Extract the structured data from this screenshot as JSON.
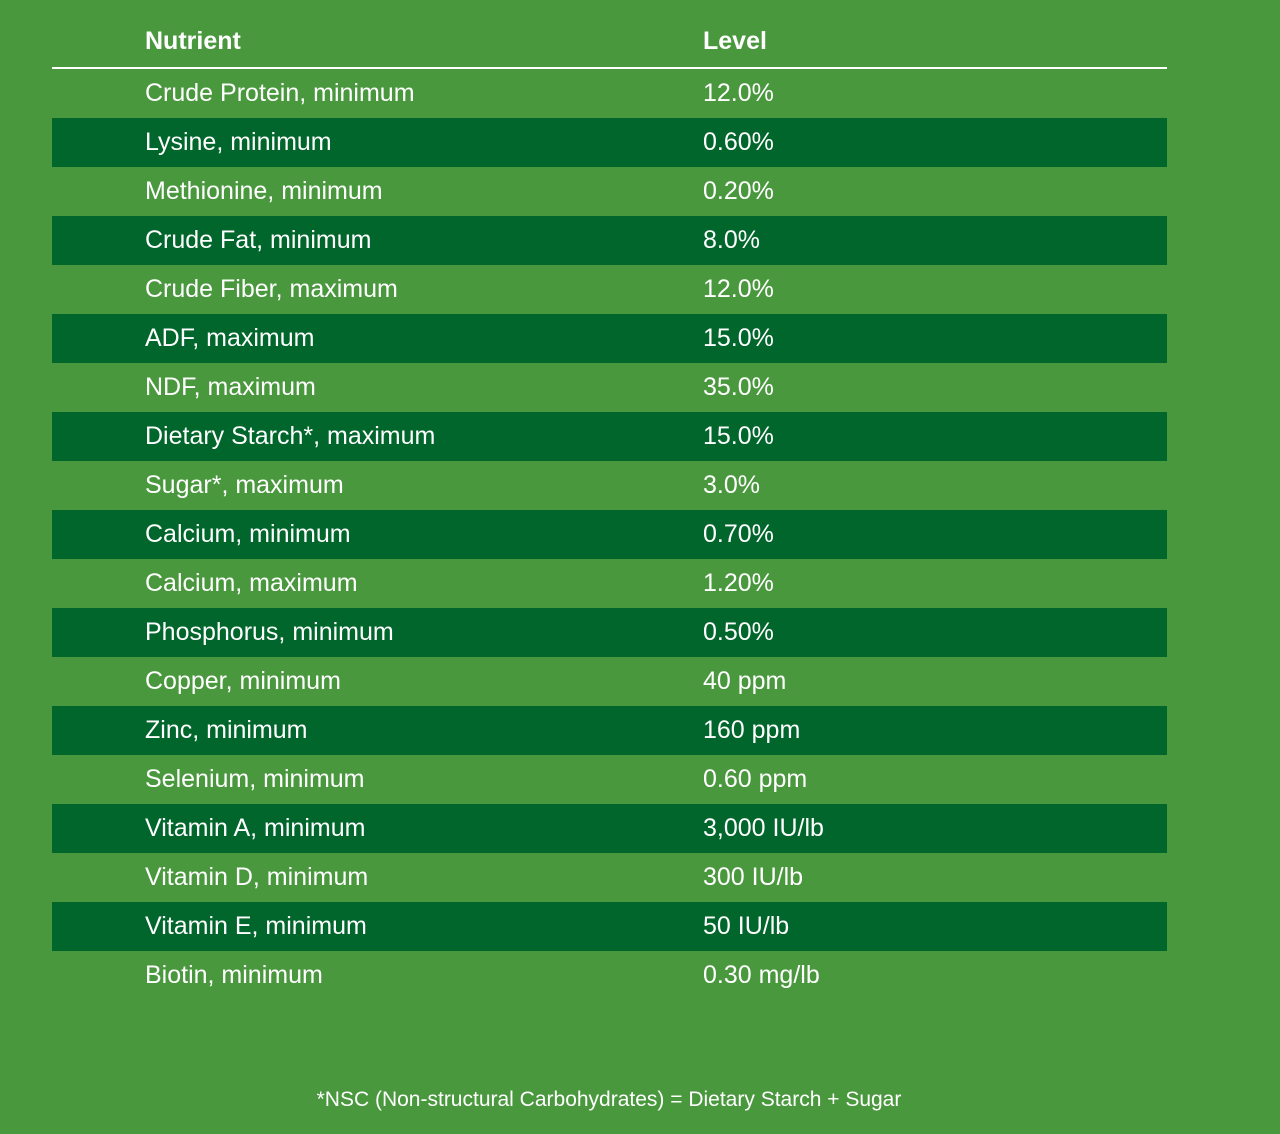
{
  "table": {
    "headers": {
      "nutrient": "Nutrient",
      "level": "Level"
    },
    "rows": [
      {
        "nutrient": "Crude Protein, minimum",
        "level": "12.0%"
      },
      {
        "nutrient": "Lysine, minimum",
        "level": "0.60%"
      },
      {
        "nutrient": "Methionine, minimum",
        "level": "0.20%"
      },
      {
        "nutrient": "Crude Fat, minimum",
        "level": "8.0%"
      },
      {
        "nutrient": "Crude Fiber, maximum",
        "level": "12.0%"
      },
      {
        "nutrient": "ADF, maximum",
        "level": "15.0%"
      },
      {
        "nutrient": "NDF, maximum",
        "level": "35.0%"
      },
      {
        "nutrient": "Dietary Starch*, maximum",
        "level": "15.0%"
      },
      {
        "nutrient": "Sugar*, maximum",
        "level": "3.0%"
      },
      {
        "nutrient": "Calcium, minimum",
        "level": "0.70%"
      },
      {
        "nutrient": "Calcium, maximum",
        "level": "1.20%"
      },
      {
        "nutrient": "Phosphorus, minimum",
        "level": "0.50%"
      },
      {
        "nutrient": "Copper, minimum",
        "level": "40 ppm"
      },
      {
        "nutrient": "Zinc, minimum",
        "level": "160 ppm"
      },
      {
        "nutrient": "Selenium, minimum",
        "level": "0.60 ppm"
      },
      {
        "nutrient": "Vitamin A, minimum",
        "level": "3,000 IU/lb"
      },
      {
        "nutrient": "Vitamin D, minimum",
        "level": "300 IU/lb"
      },
      {
        "nutrient": "Vitamin E, minimum",
        "level": "50 IU/lb"
      },
      {
        "nutrient": "Biotin, minimum",
        "level": "0.30 mg/lb"
      }
    ]
  },
  "footnote": "*NSC (Non-structural Carbohydrates) = Dietary Starch + Sugar",
  "colors": {
    "background": "#4a983e",
    "row_alt": "#00662b",
    "text": "#ffffff"
  }
}
